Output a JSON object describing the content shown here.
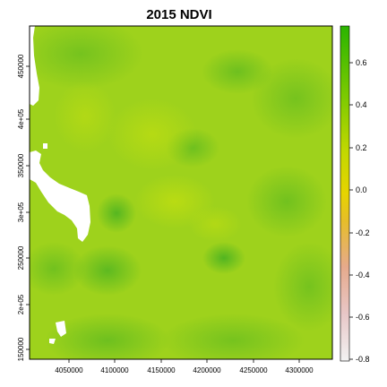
{
  "map": {
    "title": "2015 NDVI",
    "x_ticks": [
      "4050000",
      "4100000",
      "4150000",
      "4200000",
      "4250000",
      "4300000"
    ],
    "y_ticks": [
      "150000",
      "2e+05",
      "250000",
      "3e+05",
      "350000",
      "4e+05",
      "450000"
    ]
  },
  "legend": {
    "labels": [
      "0.6",
      "0.4",
      "0.2",
      "0.0",
      "-0.2",
      "-0.4",
      "-0.6",
      "-0.8"
    ],
    "colors": [
      "#dcdcdc",
      "#e8b2ae",
      "#e6aa5a",
      "#e6c300",
      "#dddd00",
      "#a6d600",
      "#6fc800",
      "#34b400"
    ]
  },
  "colors": {
    "land_base": "#9ed21c",
    "dark_veg": "#55b81e",
    "light_veg": "#bcdc10",
    "water": "#ffffff"
  }
}
